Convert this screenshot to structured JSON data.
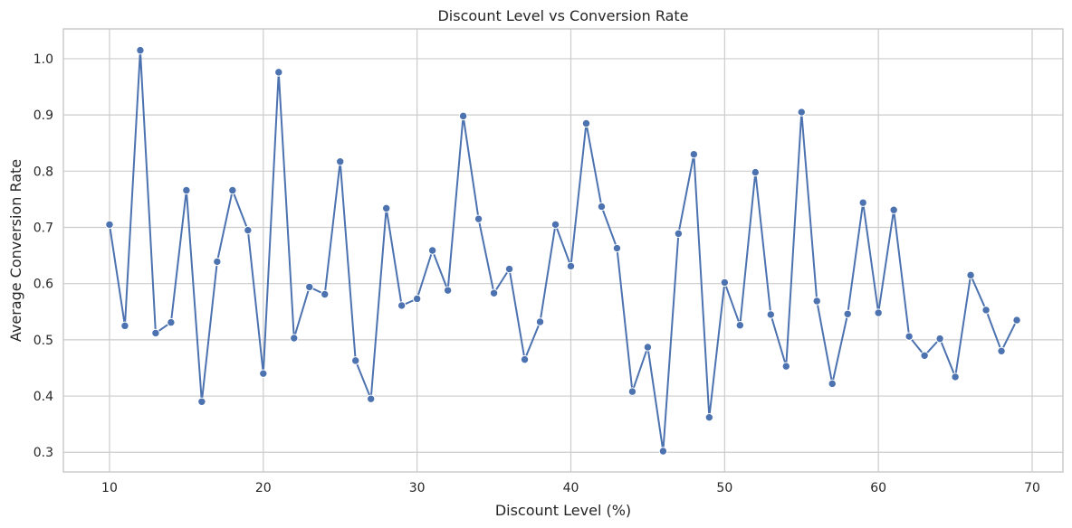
{
  "chart_data": {
    "type": "line",
    "title": "Discount Level vs Conversion Rate",
    "xlabel": "Discount Level (%)",
    "ylabel": "Average Conversion Rate",
    "xlim": [
      7,
      72
    ],
    "ylim": [
      0.265,
      1.053
    ],
    "xticks": [
      10,
      20,
      30,
      40,
      50,
      60,
      70
    ],
    "yticks": [
      0.3,
      0.4,
      0.5,
      0.6,
      0.7,
      0.8,
      0.9,
      1.0
    ],
    "xtick_labels": [
      "10",
      "20",
      "30",
      "40",
      "50",
      "60",
      "70"
    ],
    "ytick_labels": [
      "0.3",
      "0.4",
      "0.5",
      "0.6",
      "0.7",
      "0.8",
      "0.9",
      "1.0"
    ],
    "grid": true,
    "legend": "none",
    "color": "#4c72b0",
    "series": [
      {
        "x": [
          10,
          11,
          12,
          13,
          14,
          15,
          16,
          17,
          18,
          19,
          20,
          21,
          22,
          23,
          24,
          25,
          26,
          27,
          28,
          29,
          30,
          31,
          32,
          33,
          34,
          35,
          36,
          37,
          38,
          39,
          40,
          41,
          42,
          43,
          44,
          45,
          46,
          47,
          48,
          49,
          50,
          51,
          52,
          53,
          54,
          55,
          56,
          57,
          58,
          59,
          60,
          61,
          62,
          63,
          64,
          65,
          66,
          67,
          68,
          69
        ],
        "y": [
          0.705,
          0.525,
          1.015,
          0.512,
          0.531,
          0.766,
          0.39,
          0.639,
          0.766,
          0.695,
          0.44,
          0.976,
          0.503,
          0.594,
          0.581,
          0.817,
          0.463,
          0.395,
          0.734,
          0.561,
          0.573,
          0.659,
          0.588,
          0.898,
          0.715,
          0.583,
          0.626,
          0.465,
          0.532,
          0.705,
          0.631,
          0.885,
          0.737,
          0.663,
          0.408,
          0.487,
          0.302,
          0.689,
          0.83,
          0.362,
          0.602,
          0.526,
          0.798,
          0.545,
          0.453,
          0.905,
          0.569,
          0.422,
          0.546,
          0.744,
          0.548,
          0.731,
          0.506,
          0.472,
          0.502,
          0.434,
          0.615,
          0.553,
          0.48,
          0.535
        ]
      }
    ]
  }
}
